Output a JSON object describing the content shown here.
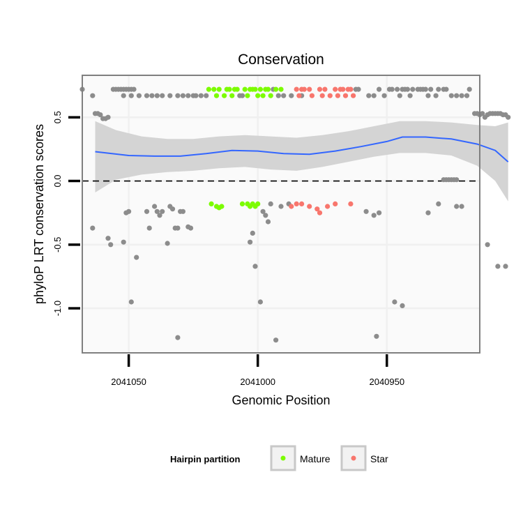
{
  "chart_data": {
    "type": "scatter",
    "title": "Conservation",
    "xlabel": "Genomic Position",
    "ylabel": "phyloP LRT conservation scores",
    "x_reversed": true,
    "xlim": [
      2041068,
      2040914
    ],
    "ylim": [
      -1.35,
      0.83
    ],
    "x_ticks": [
      2041050,
      2041000,
      2040950
    ],
    "x_tick_labels": [
      "2041050",
      "2041000",
      "2040950"
    ],
    "y_ticks": [
      -1.0,
      -0.5,
      0.0,
      0.5
    ],
    "y_tick_labels": [
      "-1.0",
      "-0.5",
      "0.0",
      "0.5"
    ],
    "grid": true,
    "reference_line": {
      "y": 0.0,
      "style": "dashed"
    },
    "legend": {
      "position": "bottom",
      "title": "Hairpin partition",
      "entries": [
        {
          "label": "Mature",
          "color": "#7cfc00"
        },
        {
          "label": "Star",
          "color": "#f8766d"
        }
      ]
    },
    "colors": {
      "other": "#8c8c8c",
      "Mature": "#7cfc00",
      "Star": "#f8766d",
      "smooth": "#3366ff",
      "ribbon": "#d4d4d4",
      "panel": "#fafafa",
      "gridline": "#f0f0f0",
      "border": "#7f7f7f"
    },
    "series": [
      {
        "name": "",
        "points": [
          [
            2041068,
            0.72
          ],
          [
            2041064,
            0.67
          ],
          [
            2041063,
            0.53
          ],
          [
            2041062,
            0.53
          ],
          [
            2041061,
            0.52
          ],
          [
            2041060,
            0.49
          ],
          [
            2041059,
            0.49
          ],
          [
            2041058,
            0.5
          ],
          [
            2041056,
            0.72
          ],
          [
            2041055,
            0.72
          ],
          [
            2041054,
            0.72
          ],
          [
            2041053,
            0.72
          ],
          [
            2041052,
            0.72
          ],
          [
            2041051,
            0.72
          ],
          [
            2041050,
            0.72
          ],
          [
            2041049,
            0.72
          ],
          [
            2041048,
            0.72
          ],
          [
            2041052,
            0.67
          ],
          [
            2041049,
            0.67
          ],
          [
            2041046,
            0.67
          ],
          [
            2041043,
            0.67
          ],
          [
            2041041,
            0.67
          ],
          [
            2041039,
            0.67
          ],
          [
            2041037,
            0.67
          ],
          [
            2041034,
            0.67
          ],
          [
            2041031,
            0.67
          ],
          [
            2041029,
            0.67
          ],
          [
            2041027,
            0.67
          ],
          [
            2041025,
            0.67
          ],
          [
            2041024,
            0.67
          ],
          [
            2041022,
            0.67
          ],
          [
            2041020,
            0.67
          ],
          [
            2041007,
            0.67
          ],
          [
            2041006,
            0.67
          ],
          [
            2040994,
            0.72
          ],
          [
            2040992,
            0.67
          ],
          [
            2040990,
            0.67
          ],
          [
            2040987,
            0.67
          ],
          [
            2040983,
            0.67
          ],
          [
            2040962,
            0.72
          ],
          [
            2040961,
            0.72
          ],
          [
            2040957,
            0.67
          ],
          [
            2040955,
            0.67
          ],
          [
            2040953,
            0.72
          ],
          [
            2040951,
            0.67
          ],
          [
            2040949,
            0.72
          ],
          [
            2040948,
            0.72
          ],
          [
            2040946,
            0.72
          ],
          [
            2040945,
            0.67
          ],
          [
            2040944,
            0.72
          ],
          [
            2040943,
            0.72
          ],
          [
            2040942,
            0.72
          ],
          [
            2040941,
            0.67
          ],
          [
            2040940,
            0.72
          ],
          [
            2040938,
            0.72
          ],
          [
            2040937,
            0.72
          ],
          [
            2040936,
            0.72
          ],
          [
            2040935,
            0.72
          ],
          [
            2040934,
            0.67
          ],
          [
            2040933,
            0.72
          ],
          [
            2040931,
            0.67
          ],
          [
            2040930,
            0.72
          ],
          [
            2040928,
            0.72
          ],
          [
            2040927,
            0.72
          ],
          [
            2040925,
            0.67
          ],
          [
            2040923,
            0.67
          ],
          [
            2040921,
            0.67
          ],
          [
            2040919,
            0.67
          ],
          [
            2040918,
            0.72
          ],
          [
            2040916,
            0.53
          ],
          [
            2040915,
            0.53
          ],
          [
            2040914,
            0.52
          ],
          [
            2040913,
            0.53
          ],
          [
            2040912,
            0.5
          ],
          [
            2040911,
            0.52
          ],
          [
            2040910,
            0.53
          ],
          [
            2040909,
            0.53
          ],
          [
            2040908,
            0.53
          ],
          [
            2040907,
            0.53
          ],
          [
            2040906,
            0.53
          ],
          [
            2040905,
            0.52
          ],
          [
            2040904,
            0.52
          ],
          [
            2040903,
            0.5
          ],
          [
            2040928,
            0.01
          ],
          [
            2040927,
            0.01
          ],
          [
            2040926,
            0.01
          ],
          [
            2040925,
            0.01
          ],
          [
            2040924,
            0.01
          ],
          [
            2040923,
            0.01
          ],
          [
            2041064,
            -0.37
          ],
          [
            2041058,
            -0.45
          ],
          [
            2041057,
            -0.5
          ],
          [
            2041052,
            -0.48
          ],
          [
            2041051,
            -0.25
          ],
          [
            2041050,
            -0.24
          ],
          [
            2041049,
            -0.95
          ],
          [
            2041047,
            -0.6
          ],
          [
            2041043,
            -0.24
          ],
          [
            2041042,
            -0.37
          ],
          [
            2041040,
            -0.2
          ],
          [
            2041039,
            -0.24
          ],
          [
            2041038,
            -0.27
          ],
          [
            2041037,
            -0.24
          ],
          [
            2041035,
            -0.49
          ],
          [
            2041034,
            -0.2
          ],
          [
            2041033,
            -0.22
          ],
          [
            2041032,
            -0.37
          ],
          [
            2041031,
            -0.37
          ],
          [
            2041031,
            -1.23
          ],
          [
            2041030,
            -0.24
          ],
          [
            2041029,
            -0.24
          ],
          [
            2041027,
            -0.36
          ],
          [
            2041026,
            -0.37
          ],
          [
            2041003,
            -0.48
          ],
          [
            2041002,
            -0.41
          ],
          [
            2041001,
            -0.67
          ],
          [
            2040999,
            -0.95
          ],
          [
            2040998,
            -0.24
          ],
          [
            2040997,
            -0.27
          ],
          [
            2040996,
            -0.32
          ],
          [
            2040995,
            -0.18
          ],
          [
            2040993,
            -1.25
          ],
          [
            2040991,
            -0.2
          ],
          [
            2040988,
            -0.18
          ],
          [
            2040958,
            -0.24
          ],
          [
            2040955,
            -0.27
          ],
          [
            2040953,
            -0.25
          ],
          [
            2040954,
            -1.22
          ],
          [
            2040947,
            -0.95
          ],
          [
            2040944,
            -0.98
          ],
          [
            2040934,
            -0.25
          ],
          [
            2040930,
            -0.18
          ],
          [
            2040923,
            -0.2
          ],
          [
            2040921,
            -0.2
          ],
          [
            2040911,
            -0.5
          ],
          [
            2040907,
            -0.67
          ],
          [
            2040904,
            -0.67
          ]
        ]
      },
      {
        "name": "Mature",
        "points": [
          [
            2041019,
            0.72
          ],
          [
            2041017,
            0.72
          ],
          [
            2041016,
            0.67
          ],
          [
            2041015,
            0.72
          ],
          [
            2041013,
            0.67
          ],
          [
            2041012,
            0.72
          ],
          [
            2041011,
            0.72
          ],
          [
            2041010,
            0.67
          ],
          [
            2041009,
            0.72
          ],
          [
            2041008,
            0.72
          ],
          [
            2041005,
            0.72
          ],
          [
            2041004,
            0.67
          ],
          [
            2041003,
            0.72
          ],
          [
            2041002,
            0.72
          ],
          [
            2041001,
            0.72
          ],
          [
            2041000,
            0.67
          ],
          [
            2040999,
            0.72
          ],
          [
            2040998,
            0.67
          ],
          [
            2040997,
            0.72
          ],
          [
            2040996,
            0.72
          ],
          [
            2040995,
            0.67
          ],
          [
            2040993,
            0.72
          ],
          [
            2040991,
            0.72
          ],
          [
            2041018,
            -0.18
          ],
          [
            2041016,
            -0.2
          ],
          [
            2041015,
            -0.21
          ],
          [
            2041014,
            -0.2
          ],
          [
            2041006,
            -0.18
          ],
          [
            2041004,
            -0.18
          ],
          [
            2041003,
            -0.2
          ],
          [
            2041002,
            -0.18
          ],
          [
            2041001,
            -0.2
          ],
          [
            2041000,
            -0.18
          ]
        ]
      },
      {
        "name": "Star",
        "points": [
          [
            2040985,
            0.72
          ],
          [
            2040984,
            0.67
          ],
          [
            2040983,
            0.72
          ],
          [
            2040982,
            0.72
          ],
          [
            2040980,
            0.72
          ],
          [
            2040979,
            0.67
          ],
          [
            2040976,
            0.72
          ],
          [
            2040975,
            0.67
          ],
          [
            2040974,
            0.72
          ],
          [
            2040972,
            0.67
          ],
          [
            2040970,
            0.72
          ],
          [
            2040969,
            0.67
          ],
          [
            2040968,
            0.72
          ],
          [
            2040967,
            0.72
          ],
          [
            2040966,
            0.67
          ],
          [
            2040965,
            0.72
          ],
          [
            2040964,
            0.72
          ],
          [
            2040963,
            0.67
          ],
          [
            2040987,
            -0.2
          ],
          [
            2040985,
            -0.18
          ],
          [
            2040983,
            -0.18
          ],
          [
            2040980,
            -0.2
          ],
          [
            2040977,
            -0.22
          ],
          [
            2040976,
            -0.25
          ],
          [
            2040973,
            -0.2
          ],
          [
            2040970,
            -0.18
          ],
          [
            2040964,
            -0.18
          ]
        ]
      }
    ],
    "smooth": [
      [
        2041063,
        0.23
      ],
      [
        2041050,
        0.2
      ],
      [
        2041040,
        0.195
      ],
      [
        2041030,
        0.195
      ],
      [
        2041020,
        0.215
      ],
      [
        2041010,
        0.24
      ],
      [
        2041000,
        0.235
      ],
      [
        2040990,
        0.215
      ],
      [
        2040980,
        0.21
      ],
      [
        2040970,
        0.235
      ],
      [
        2040960,
        0.27
      ],
      [
        2040950,
        0.31
      ],
      [
        2040944,
        0.345
      ],
      [
        2040935,
        0.345
      ],
      [
        2040925,
        0.33
      ],
      [
        2040915,
        0.29
      ],
      [
        2040908,
        0.24
      ],
      [
        2040903,
        0.15
      ]
    ],
    "smooth_ci_upper": [
      [
        2041063,
        0.47
      ],
      [
        2041055,
        0.4
      ],
      [
        2041045,
        0.35
      ],
      [
        2041035,
        0.33
      ],
      [
        2041025,
        0.33
      ],
      [
        2041015,
        0.35
      ],
      [
        2041005,
        0.36
      ],
      [
        2040995,
        0.35
      ],
      [
        2040985,
        0.34
      ],
      [
        2040975,
        0.36
      ],
      [
        2040965,
        0.39
      ],
      [
        2040955,
        0.43
      ],
      [
        2040945,
        0.47
      ],
      [
        2040935,
        0.47
      ],
      [
        2040925,
        0.46
      ],
      [
        2040915,
        0.44
      ],
      [
        2040908,
        0.43
      ],
      [
        2040903,
        0.46
      ]
    ],
    "smooth_ci_lower": [
      [
        2041063,
        -0.09
      ],
      [
        2041055,
        0.01
      ],
      [
        2041045,
        0.05
      ],
      [
        2041035,
        0.07
      ],
      [
        2041025,
        0.08
      ],
      [
        2041015,
        0.1
      ],
      [
        2041005,
        0.11
      ],
      [
        2040995,
        0.09
      ],
      [
        2040985,
        0.08
      ],
      [
        2040975,
        0.11
      ],
      [
        2040965,
        0.15
      ],
      [
        2040955,
        0.19
      ],
      [
        2040945,
        0.22
      ],
      [
        2040935,
        0.22
      ],
      [
        2040925,
        0.2
      ],
      [
        2040915,
        0.12
      ],
      [
        2040908,
        0.0
      ],
      [
        2040903,
        -0.16
      ]
    ]
  }
}
